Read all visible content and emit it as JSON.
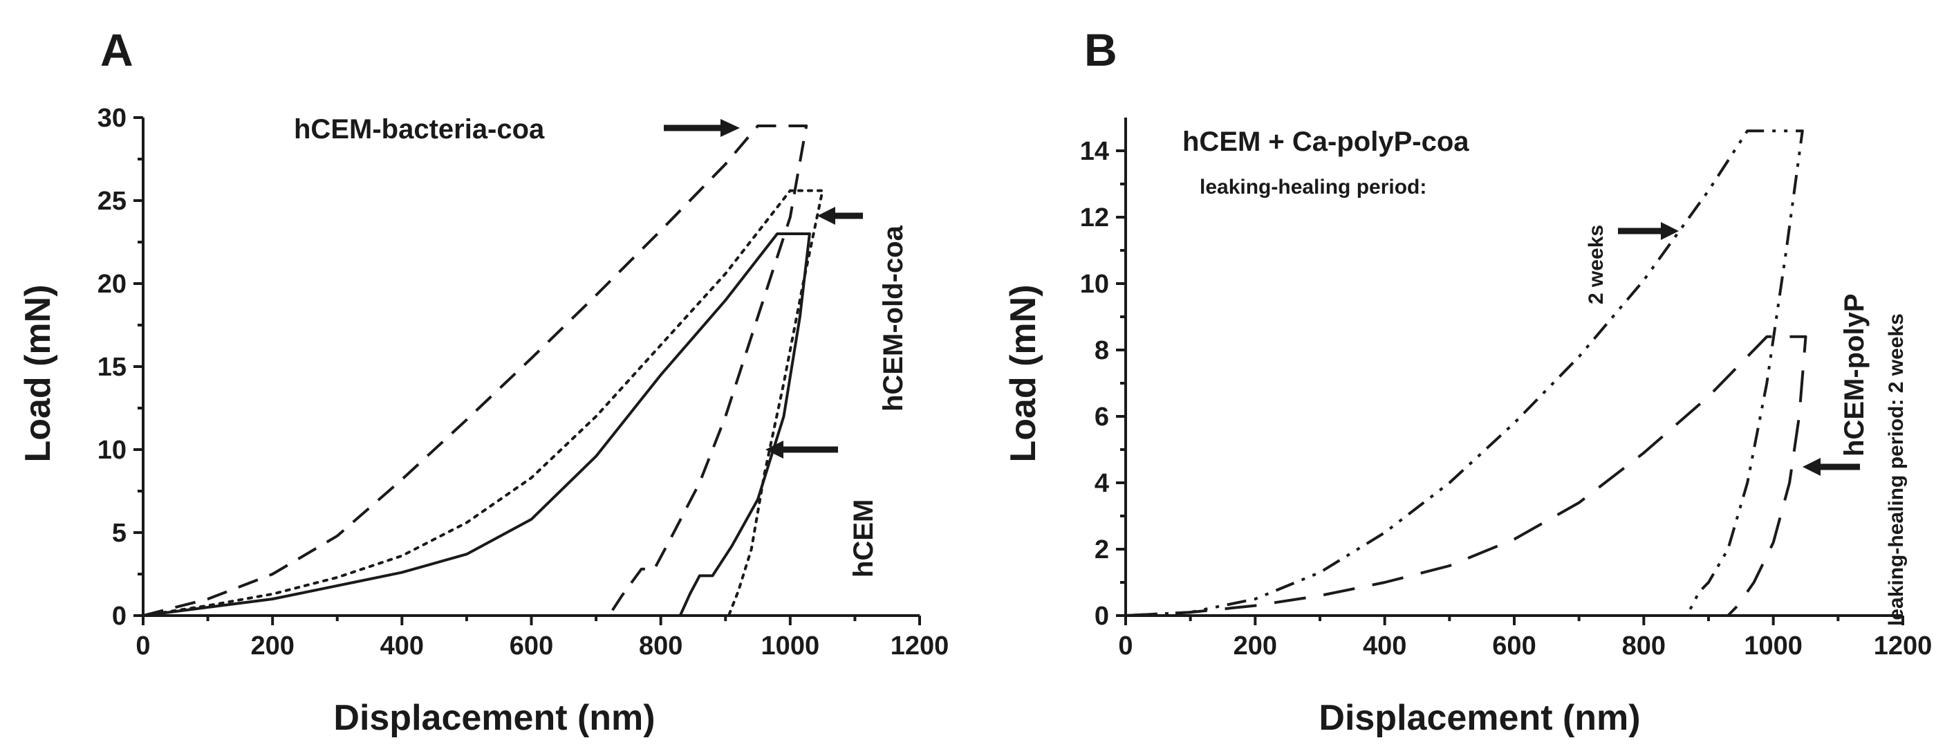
{
  "chart_data": [
    {
      "panel": "A",
      "type": "line",
      "xlabel": "Displacement (nm)",
      "ylabel": "Load (mN)",
      "xlim": [
        0,
        1200
      ],
      "ylim": [
        0,
        30
      ],
      "xticks": [
        0,
        200,
        400,
        600,
        800,
        1000,
        1200
      ],
      "yticks": [
        0,
        5,
        10,
        15,
        20,
        25,
        30
      ],
      "series": [
        {
          "name": "hCEM-bacteria-coa",
          "style": "dashed",
          "points": [
            [
              0,
              0
            ],
            [
              100,
              1
            ],
            [
              200,
              2.5
            ],
            [
              300,
              4.8
            ],
            [
              400,
              8.2
            ],
            [
              500,
              11.8
            ],
            [
              600,
              15.5
            ],
            [
              700,
              19.3
            ],
            [
              800,
              23.2
            ],
            [
              900,
              27.2
            ],
            [
              950,
              29.5
            ],
            [
              1025,
              29.5
            ],
            [
              1000,
              24
            ],
            [
              950,
              18
            ],
            [
              900,
              12
            ],
            [
              860,
              8
            ],
            [
              820,
              5
            ],
            [
              790,
              2.8
            ],
            [
              770,
              2.8
            ],
            [
              740,
              1.2
            ],
            [
              720,
              0
            ]
          ]
        },
        {
          "name": "hCEM-old-coa",
          "style": "dotted",
          "points": [
            [
              0,
              0
            ],
            [
              100,
              0.6
            ],
            [
              200,
              1.3
            ],
            [
              300,
              2.3
            ],
            [
              400,
              3.6
            ],
            [
              500,
              5.6
            ],
            [
              600,
              8.3
            ],
            [
              700,
              12
            ],
            [
              800,
              16.3
            ],
            [
              900,
              20.6
            ],
            [
              1000,
              25.6
            ],
            [
              1050,
              25.6
            ],
            [
              1020,
              20
            ],
            [
              990,
              14
            ],
            [
              960,
              8.5
            ],
            [
              940,
              4
            ],
            [
              920,
              1.5
            ],
            [
              905,
              0
            ]
          ]
        },
        {
          "name": "hCEM",
          "style": "solid",
          "points": [
            [
              0,
              0
            ],
            [
              100,
              0.5
            ],
            [
              200,
              1
            ],
            [
              300,
              1.8
            ],
            [
              400,
              2.6
            ],
            [
              500,
              3.7
            ],
            [
              600,
              5.8
            ],
            [
              700,
              9.6
            ],
            [
              800,
              14.5
            ],
            [
              900,
              19
            ],
            [
              980,
              23
            ],
            [
              1030,
              23
            ],
            [
              1015,
              18
            ],
            [
              990,
              12
            ],
            [
              950,
              7
            ],
            [
              910,
              4.2
            ],
            [
              880,
              2.4
            ],
            [
              860,
              2.4
            ],
            [
              845,
              1.3
            ],
            [
              830,
              0
            ]
          ]
        }
      ],
      "annotations": [
        {
          "text": "hCEM-bacteria-coa",
          "x": 940,
          "y": 29.5
        },
        {
          "text": "hCEM-old-coa",
          "x": 1055,
          "y": 24.5
        },
        {
          "text": "hCEM",
          "x": 985,
          "y": 9.9
        }
      ]
    },
    {
      "panel": "B",
      "type": "line",
      "xlabel": "Displacement (nm)",
      "ylabel": "Load (mN)",
      "xlim": [
        0,
        1200
      ],
      "ylim": [
        0,
        15
      ],
      "xticks": [
        0,
        200,
        400,
        600,
        800,
        1000,
        1200
      ],
      "yticks": [
        0,
        2,
        4,
        6,
        8,
        10,
        12,
        14
      ],
      "series": [
        {
          "name": "hCEM + Ca-polyP-coa (2 weeks)",
          "style": "dash-dot-dot",
          "points": [
            [
              0,
              0
            ],
            [
              50,
              0.05
            ],
            [
              100,
              0.1
            ],
            [
              200,
              0.5
            ],
            [
              300,
              1.3
            ],
            [
              400,
              2.5
            ],
            [
              500,
              4
            ],
            [
              600,
              5.8
            ],
            [
              700,
              7.8
            ],
            [
              800,
              10.1
            ],
            [
              900,
              12.8
            ],
            [
              960,
              14.6
            ],
            [
              1045,
              14.6
            ],
            [
              1020,
              11
            ],
            [
              990,
              7
            ],
            [
              960,
              4
            ],
            [
              930,
              2
            ],
            [
              900,
              1
            ],
            [
              885,
              0.7
            ],
            [
              875,
              0.3
            ],
            [
              865,
              0
            ]
          ]
        },
        {
          "name": "hCEM-polyP (2 weeks)",
          "style": "long-dashed",
          "points": [
            [
              0,
              0
            ],
            [
              100,
              0.1
            ],
            [
              200,
              0.3
            ],
            [
              300,
              0.6
            ],
            [
              400,
              1
            ],
            [
              500,
              1.5
            ],
            [
              600,
              2.3
            ],
            [
              700,
              3.4
            ],
            [
              800,
              4.9
            ],
            [
              900,
              6.6
            ],
            [
              990,
              8.4
            ],
            [
              1050,
              8.4
            ],
            [
              1040,
              6
            ],
            [
              1025,
              4
            ],
            [
              1000,
              2.2
            ],
            [
              970,
              1
            ],
            [
              945,
              0.3
            ],
            [
              930,
              0
            ]
          ]
        }
      ],
      "annotations": [
        {
          "text": "hCEM + Ca-polyP-coa",
          "x": 500,
          "y": 14
        },
        {
          "text": "leaking-healing period:",
          "x": 500,
          "y": 12.8
        },
        {
          "text": "2 weeks",
          "x": 875,
          "y": 11.2
        },
        {
          "text": "hCEM-polyP",
          "x": 1105,
          "y": 4.5
        },
        {
          "text": "leaking-healing period: 2 weeks",
          "x": 1170,
          "y": 7
        }
      ]
    }
  ],
  "panel_letters": [
    "A",
    "B"
  ],
  "panelA": {
    "letter": "A",
    "label_bacteria": "hCEM-bacteria-coa",
    "label_old": "hCEM-old-coa",
    "label_hcem": "hCEM",
    "xlabel": "Displacement (nm)",
    "ylabel": "Load (mN)"
  },
  "panelB": {
    "letter": "B",
    "label_main": "hCEM + Ca-polyP-coa",
    "label_period": "leaking-healing period:",
    "label_weeks": "2 weeks",
    "label_polyp": "hCEM-polyP",
    "label_polyp_period": "leaking-healing period: 2 weeks",
    "xlabel": "Displacement (nm)",
    "ylabel": "Load (mN)"
  }
}
